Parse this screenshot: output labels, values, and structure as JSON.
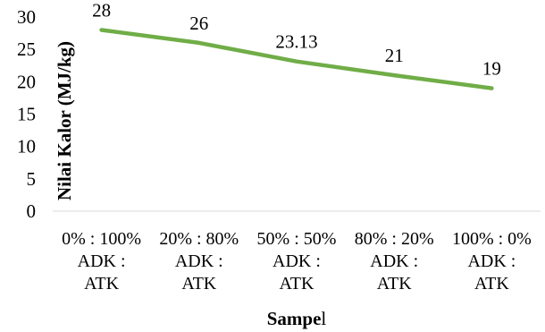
{
  "chart_data": {
    "type": "line",
    "title": "",
    "ylabel": "Nilai Kalor (MJ/kg)",
    "xlabel_bold": "Sampe",
    "xlabel_rest": "l",
    "ylim": [
      0,
      30
    ],
    "yticks": [
      0,
      5,
      10,
      15,
      20,
      25,
      30
    ],
    "categories": [
      [
        "0% : 100%",
        "ADK :",
        "ATK"
      ],
      [
        "20% : 80%",
        "ADK :",
        "ATK"
      ],
      [
        "50% : 50%",
        "ADK :",
        "ATK"
      ],
      [
        "80% : 20%",
        "ADK :",
        "ATK"
      ],
      [
        "100% : 0%",
        "ADK :",
        "ATK"
      ]
    ],
    "series": [
      {
        "values": [
          28,
          26,
          23.13,
          21,
          19
        ],
        "labels": [
          "28",
          "26",
          "23.13",
          "21",
          "19"
        ],
        "color": "#70AD47"
      }
    ],
    "grid": false,
    "legend": "none"
  }
}
